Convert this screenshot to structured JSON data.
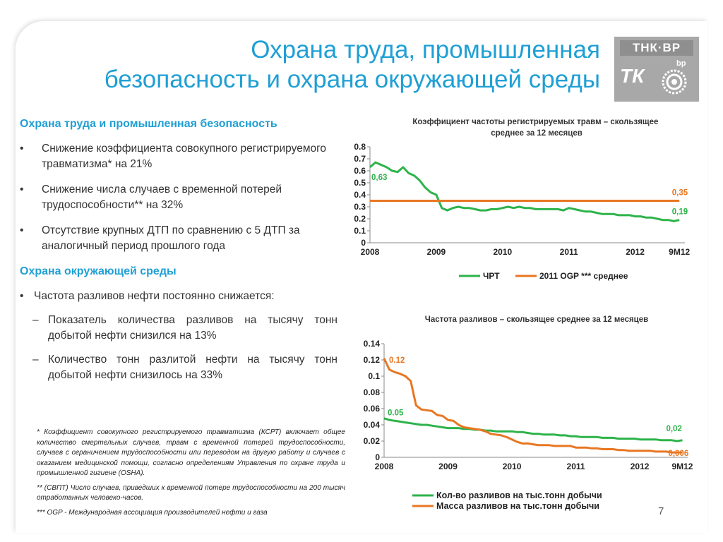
{
  "title_line1": "Охрана труда, промышленная",
  "title_line2": "безопасность и охрана окружающей среды",
  "logo": {
    "top": "ТНК·ВР",
    "tk": "ТК",
    "bp": "bp"
  },
  "left": {
    "section1": "Охрана труда и промышленная безопасность",
    "bullets1": [
      "Снижение коэффициента совокупного регистрируемого травматизма* на 21%",
      "Снижение числа случаев с временной потерей трудоспособности** на 32%",
      "Отсутствие крупных ДТП по сравнению с 5 ДТП за аналогичный период прошлого года"
    ],
    "section2": "Охрана окружающей среды",
    "bullet2": "Частота разливов нефти постоянно снижается:",
    "subs": [
      "Показатель количества разливов на тысячу тонн добытой нефти снизился на 13%",
      "Количество тонн разлитой нефти на тысячу  тонн добытой нефти снизилось на 33%"
    ],
    "bullet_char": "•",
    "dash_char": "–"
  },
  "footnotes": [
    "* Коэффициент совокупного регистрируемого травматизма (КСРТ) включает общее количество смертельных случаев, травм с временной потерей трудоспособности, случаев с ограничением трудоспособности или переводом на другую работу и случаев с оказанием медицинской помощи, согласно определениям Управления по охране труда и промышленной гигиене (OSHA).",
    "** (СВПТ) Число случаев, приведших к временной потере трудоспособности на 200 тысяч отработанных человеко-часов.",
    "*** OGP -  Международная ассоциация производителей нефти и газа"
  ],
  "page_number": "7",
  "chart_data": [
    {
      "type": "line",
      "title": "Коэффициент частоты регистрируемых травм – скользящее среднее за 12 месяцев",
      "ylim": [
        0,
        0.8
      ],
      "yticks": [
        "0",
        "0.1",
        "0.2",
        "0.3",
        "0.4",
        "0.5",
        "0.6",
        "0.7",
        "0.8"
      ],
      "xlim": [
        0,
        57
      ],
      "xticks": [
        {
          "label": "2008",
          "x": 0
        },
        {
          "label": "2009",
          "x": 12
        },
        {
          "label": "2010",
          "x": 24
        },
        {
          "label": "2011",
          "x": 36
        },
        {
          "label": "2012",
          "x": 48
        },
        {
          "label": "9M12",
          "x": 56
        }
      ],
      "grid": false,
      "legend_position": "bottom",
      "series": [
        {
          "name": "ЧРТ",
          "color": "#2db34a",
          "x": [
            0,
            1,
            2,
            3,
            4,
            5,
            6,
            7,
            8,
            9,
            10,
            11,
            12,
            13,
            14,
            15,
            16,
            17,
            18,
            19,
            20,
            21,
            22,
            23,
            24,
            25,
            26,
            27,
            28,
            29,
            30,
            31,
            32,
            33,
            34,
            35,
            36,
            37,
            38,
            39,
            40,
            41,
            42,
            43,
            44,
            45,
            46,
            47,
            48,
            49,
            50,
            51,
            52,
            53,
            54,
            55,
            56
          ],
          "values": [
            0.63,
            0.67,
            0.65,
            0.63,
            0.6,
            0.59,
            0.63,
            0.58,
            0.56,
            0.52,
            0.46,
            0.42,
            0.4,
            0.29,
            0.27,
            0.29,
            0.3,
            0.29,
            0.29,
            0.28,
            0.27,
            0.27,
            0.28,
            0.28,
            0.29,
            0.3,
            0.29,
            0.3,
            0.29,
            0.29,
            0.28,
            0.28,
            0.28,
            0.28,
            0.28,
            0.27,
            0.29,
            0.28,
            0.27,
            0.26,
            0.26,
            0.25,
            0.24,
            0.24,
            0.24,
            0.23,
            0.23,
            0.23,
            0.22,
            0.22,
            0.21,
            0.21,
            0.2,
            0.19,
            0.19,
            0.18,
            0.19
          ]
        },
        {
          "name": "2011 OGP *** среднее",
          "color": "#e87722",
          "x": [
            0,
            56
          ],
          "values": [
            0.35,
            0.35
          ]
        }
      ],
      "annotations": [
        {
          "text": "0,63",
          "color": "#2db34a"
        },
        {
          "text": "0,35",
          "color": "#e87722"
        },
        {
          "text": "0,19",
          "color": "#2db34a"
        }
      ]
    },
    {
      "type": "line",
      "title": "Частота разливов – скользящее среднее за 12 месяцев",
      "ylim": [
        0,
        0.14
      ],
      "yticks": [
        "0",
        "0.02",
        "0.04",
        "0.06",
        "0.08",
        "0.1",
        "0.12",
        "0.14"
      ],
      "xlim": [
        0,
        57
      ],
      "xticks": [
        {
          "label": "2008",
          "x": 0
        },
        {
          "label": "2009",
          "x": 12
        },
        {
          "label": "2010",
          "x": 24
        },
        {
          "label": "2011",
          "x": 36
        },
        {
          "label": "2012",
          "x": 48
        },
        {
          "label": "9M12",
          "x": 56
        }
      ],
      "grid": false,
      "legend_position": "bottom",
      "series": [
        {
          "name": "Кол-во разливов на тыс.тонн добычи",
          "color": "#2db34a",
          "x": [
            0,
            1,
            2,
            3,
            4,
            5,
            6,
            7,
            8,
            9,
            10,
            11,
            12,
            13,
            14,
            15,
            16,
            17,
            18,
            19,
            20,
            21,
            22,
            23,
            24,
            25,
            26,
            27,
            28,
            29,
            30,
            31,
            32,
            33,
            34,
            35,
            36,
            37,
            38,
            39,
            40,
            41,
            42,
            43,
            44,
            45,
            46,
            47,
            48,
            49,
            50,
            51,
            52,
            53,
            54,
            55,
            56
          ],
          "values": [
            0.048,
            0.046,
            0.045,
            0.044,
            0.043,
            0.042,
            0.041,
            0.04,
            0.04,
            0.039,
            0.038,
            0.037,
            0.036,
            0.036,
            0.036,
            0.035,
            0.035,
            0.034,
            0.034,
            0.033,
            0.033,
            0.032,
            0.032,
            0.032,
            0.032,
            0.031,
            0.031,
            0.03,
            0.029,
            0.029,
            0.028,
            0.028,
            0.028,
            0.027,
            0.027,
            0.026,
            0.026,
            0.025,
            0.025,
            0.025,
            0.025,
            0.024,
            0.024,
            0.024,
            0.023,
            0.023,
            0.023,
            0.023,
            0.022,
            0.022,
            0.022,
            0.022,
            0.021,
            0.021,
            0.021,
            0.02,
            0.021
          ]
        },
        {
          "name": "Масса разливов на тыс.тонн добычи",
          "color": "#e87722",
          "x": [
            0,
            1,
            2,
            3,
            4,
            5,
            6,
            7,
            8,
            9,
            10,
            11,
            12,
            13,
            14,
            15,
            16,
            17,
            18,
            19,
            20,
            21,
            22,
            23,
            24,
            25,
            26,
            27,
            28,
            29,
            30,
            31,
            32,
            33,
            34,
            35,
            36,
            37,
            38,
            39,
            40,
            41,
            42,
            43,
            44,
            45,
            46,
            47,
            48,
            49,
            50,
            51,
            52,
            53,
            54,
            55,
            56
          ],
          "values": [
            0.122,
            0.108,
            0.105,
            0.103,
            0.1,
            0.094,
            0.064,
            0.059,
            0.058,
            0.057,
            0.052,
            0.051,
            0.046,
            0.045,
            0.04,
            0.037,
            0.036,
            0.035,
            0.034,
            0.032,
            0.029,
            0.028,
            0.027,
            0.025,
            0.022,
            0.019,
            0.017,
            0.017,
            0.016,
            0.015,
            0.015,
            0.015,
            0.014,
            0.014,
            0.014,
            0.014,
            0.012,
            0.012,
            0.012,
            0.011,
            0.011,
            0.01,
            0.01,
            0.01,
            0.009,
            0.009,
            0.008,
            0.008,
            0.008,
            0.008,
            0.008,
            0.007,
            0.007,
            0.007,
            0.006,
            0.006,
            0.006
          ]
        }
      ],
      "annotations": [
        {
          "text": "0.12",
          "color": "#e87722"
        },
        {
          "text": "0.05",
          "color": "#2db34a"
        },
        {
          "text": "0,02",
          "color": "#2db34a"
        },
        {
          "text": "0,006",
          "color": "#e87722"
        }
      ]
    }
  ]
}
